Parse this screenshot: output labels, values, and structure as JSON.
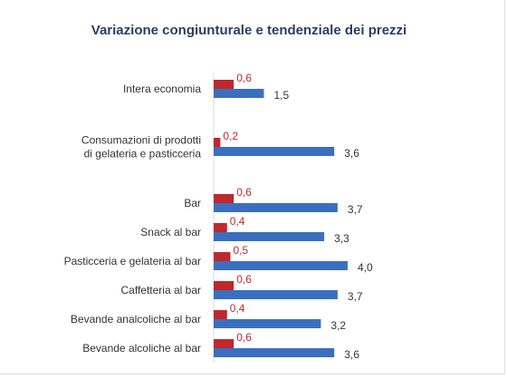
{
  "chart_data": {
    "type": "bar",
    "orientation": "horizontal",
    "title": "Variazione congiunturale e tendenziale dei prezzi",
    "categories": [
      [
        "Intera economia"
      ],
      [
        "Consumazioni di prodotti",
        "di gelateria e pasticceria"
      ],
      [
        "Bar"
      ],
      [
        "Snack al bar"
      ],
      [
        "Pasticceria e gelateria al bar"
      ],
      [
        "Caffetteria al bar"
      ],
      [
        "Bevande analcoliche al bar"
      ],
      [
        "Bevande alcoliche al bar"
      ]
    ],
    "series": [
      {
        "values": [
          0.6,
          0.2,
          0.6,
          0.4,
          0.5,
          0.6,
          0.4,
          0.6
        ],
        "labels": [
          "0,6",
          "0,2",
          "0,6",
          "0,4",
          "0,5",
          "0,6",
          "0,4",
          "0,6"
        ],
        "color": "#c0282c"
      },
      {
        "values": [
          1.5,
          3.6,
          3.7,
          3.3,
          4.0,
          3.7,
          3.2,
          3.6
        ],
        "labels": [
          "1,5",
          "3,6",
          "3,7",
          "3,3",
          "4,0",
          "3,7",
          "3,2",
          "3,6"
        ],
        "color": "#3a6fc0"
      }
    ],
    "xlim": [
      0,
      4.2
    ],
    "grid": false,
    "legend": "none"
  }
}
